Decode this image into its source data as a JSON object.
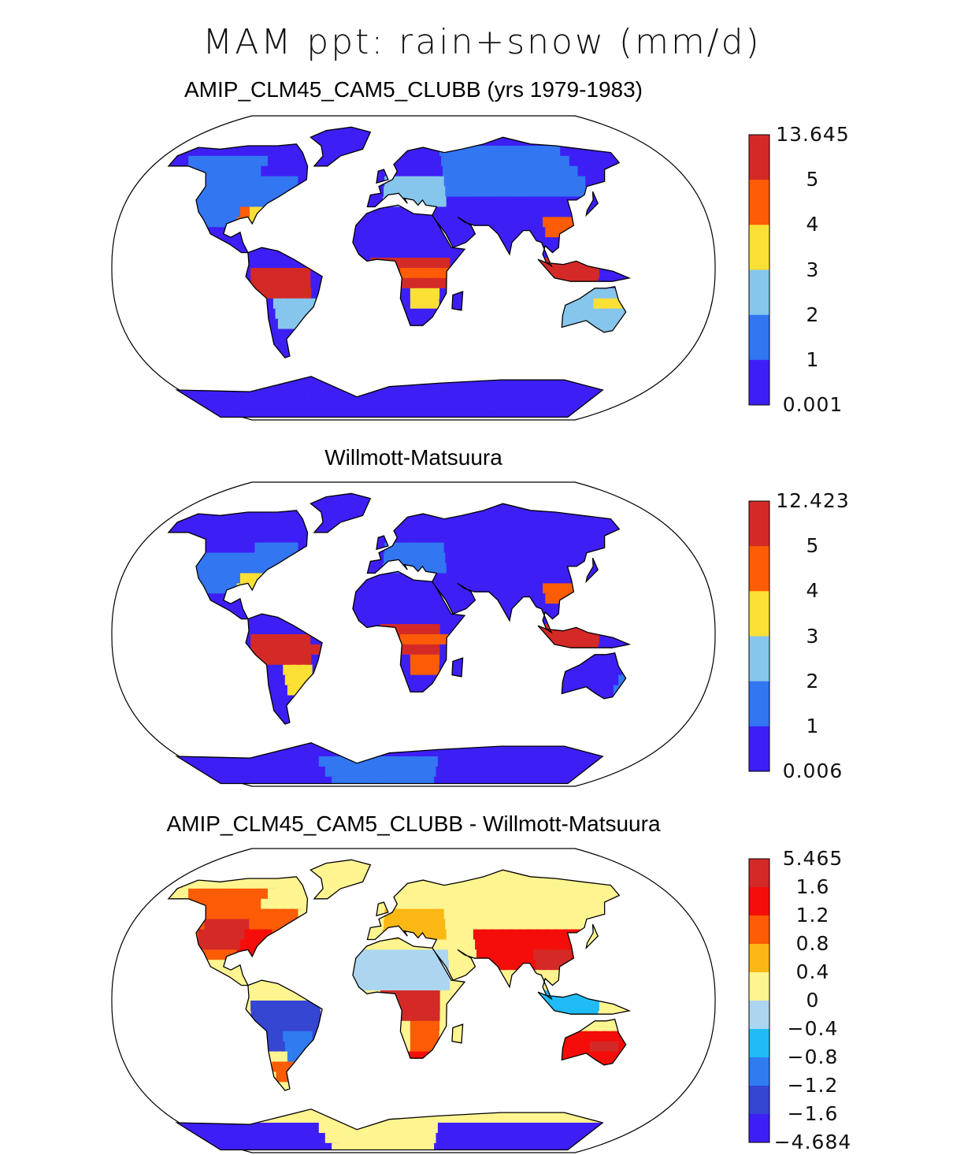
{
  "main_title": "MAM ppt: rain+snow (mm/d)",
  "panels": [
    {
      "title": "AMIP_CLM45_CAM5_CLUBB (yrs 1979-1983)",
      "colorbar": {
        "labels": [
          "13.645",
          "5",
          "4",
          "3",
          "2",
          "1",
          "0.001"
        ],
        "colors": [
          "#d42a27",
          "#fb5c05",
          "#fde035",
          "#86c6ec",
          "#3276f2",
          "#3d1ff5"
        ]
      },
      "land_colors": {
        "ocean": "#ffffff",
        "dry": "#3d1ff5",
        "low": "#3276f2",
        "mid": "#86c6ec",
        "high": "#fde035",
        "higher": "#fb5c05",
        "max": "#d42a27"
      }
    },
    {
      "title": "Willmott-Matsuura",
      "colorbar": {
        "labels": [
          "12.423",
          "5",
          "4",
          "3",
          "2",
          "1",
          "0.006"
        ],
        "colors": [
          "#d42a27",
          "#fb5c05",
          "#fde035",
          "#86c6ec",
          "#3276f2",
          "#3d1ff5"
        ]
      }
    },
    {
      "title": "AMIP_CLM45_CAM5_CLUBB - Willmott-Matsuura",
      "colorbar": {
        "labels": [
          "5.465",
          "1.6",
          "1.2",
          "0.8",
          "0.4",
          "0",
          "−0.4",
          "−0.8",
          "−1.2",
          "−1.6",
          "−4.684"
        ],
        "colors": [
          "#d42a27",
          "#f50d0a",
          "#fb5c05",
          "#fbb714",
          "#fef490",
          "#acd6f0",
          "#1fbcf7",
          "#2e7cf0",
          "#3546d3",
          "#3d1ff5"
        ]
      }
    }
  ]
}
